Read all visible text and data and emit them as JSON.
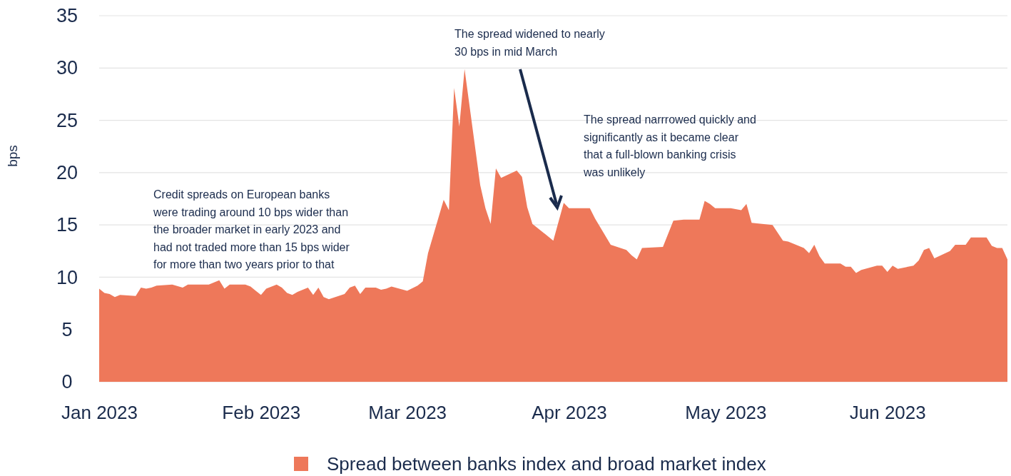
{
  "chart_data": {
    "type": "area",
    "ylabel": "bps",
    "ylim": [
      0,
      35
    ],
    "yticks": [
      0,
      5,
      10,
      15,
      20,
      25,
      30,
      35
    ],
    "xlim": [
      "2023-01-01",
      "2023-06-24"
    ],
    "xticks": [
      {
        "value": "2023-01-01",
        "label": "Jan 2023"
      },
      {
        "value": "2023-02-01",
        "label": "Feb 2023"
      },
      {
        "value": "2023-03-01",
        "label": "Mar 2023"
      },
      {
        "value": "2023-04-01",
        "label": "Apr 2023"
      },
      {
        "value": "2023-05-01",
        "label": "May 2023"
      },
      {
        "value": "2023-06-01",
        "label": "Jun 2023"
      }
    ],
    "grid": "y",
    "legend": "bottom",
    "annotations": [
      "Credit spreads on European banks were trading around 10 bps wider than the broader market in early 2023 and had not traded more than 15 bps wider for more than two years prior to that",
      "The spread widened to nearly 30 bps in mid March",
      "The spread narrrowed quickly and significantly as it became clear that a full-blown banking crisis was unlikely"
    ],
    "x": [
      "2023-01-01",
      "2023-01-02",
      "2023-01-03",
      "2023-01-04",
      "2023-01-05",
      "2023-01-08",
      "2023-01-09",
      "2023-01-10",
      "2023-01-11",
      "2023-01-12",
      "2023-01-15",
      "2023-01-17",
      "2023-01-18",
      "2023-01-22",
      "2023-01-23",
      "2023-01-24",
      "2023-01-25",
      "2023-01-26",
      "2023-01-29",
      "2023-01-30",
      "2023-01-31",
      "2023-02-01",
      "2023-02-02",
      "2023-02-04",
      "2023-02-05",
      "2023-02-06",
      "2023-02-07",
      "2023-02-08",
      "2023-02-10",
      "2023-02-11",
      "2023-02-12",
      "2023-02-13",
      "2023-02-14",
      "2023-02-17",
      "2023-02-18",
      "2023-02-19",
      "2023-02-20",
      "2023-02-21",
      "2023-02-23",
      "2023-02-24",
      "2023-02-25",
      "2023-02-26",
      "2023-03-01",
      "2023-03-03",
      "2023-03-04",
      "2023-03-05",
      "2023-03-08",
      "2023-03-09",
      "2023-03-10",
      "2023-03-11",
      "2023-03-12",
      "2023-03-15",
      "2023-03-16",
      "2023-03-17",
      "2023-03-18",
      "2023-03-19",
      "2023-03-22",
      "2023-03-23",
      "2023-03-24",
      "2023-03-25",
      "2023-03-29",
      "2023-03-31",
      "2023-04-01",
      "2023-04-05",
      "2023-04-06",
      "2023-04-09",
      "2023-04-12",
      "2023-04-13",
      "2023-04-14",
      "2023-04-15",
      "2023-04-19",
      "2023-04-21",
      "2023-04-23",
      "2023-04-26",
      "2023-04-27",
      "2023-04-28",
      "2023-04-29",
      "2023-05-02",
      "2023-05-04",
      "2023-05-05",
      "2023-05-06",
      "2023-05-10",
      "2023-05-12",
      "2023-05-13",
      "2023-05-16",
      "2023-05-17",
      "2023-05-18",
      "2023-05-19",
      "2023-05-20",
      "2023-05-23",
      "2023-05-24",
      "2023-05-25",
      "2023-05-26",
      "2023-05-27",
      "2023-05-30",
      "2023-05-31",
      "2023-06-01",
      "2023-06-02",
      "2023-06-03",
      "2023-06-06",
      "2023-06-07",
      "2023-06-08",
      "2023-06-09",
      "2023-06-10",
      "2023-06-13",
      "2023-06-14",
      "2023-06-16",
      "2023-06-17",
      "2023-06-20",
      "2023-06-21",
      "2023-06-22",
      "2023-06-23",
      "2023-06-24"
    ],
    "series": [
      {
        "name": "Spread between banks index and broad market index",
        "color": "#ee785a",
        "values": [
          8.9,
          8.5,
          8.4,
          8.1,
          8.3,
          8.2,
          9.0,
          8.9,
          9.0,
          9.2,
          9.3,
          9.0,
          9.3,
          9.3,
          9.5,
          9.7,
          8.9,
          9.3,
          9.3,
          9.1,
          8.7,
          8.3,
          8.9,
          9.3,
          9.0,
          8.5,
          8.3,
          8.6,
          9.0,
          8.3,
          9.0,
          8.1,
          7.9,
          8.4,
          9.0,
          9.2,
          8.4,
          9.0,
          9.0,
          8.8,
          8.9,
          9.1,
          8.7,
          9.2,
          9.6,
          12.3,
          17.4,
          16.4,
          28.1,
          24.4,
          29.9,
          18.8,
          16.6,
          15.1,
          20.4,
          19.5,
          20.2,
          19.6,
          16.7,
          15.1,
          13.5,
          17.1,
          16.6,
          16.6,
          15.6,
          13.1,
          12.6,
          12.1,
          11.7,
          12.8,
          12.9,
          15.4,
          15.5,
          15.5,
          17.3,
          17.0,
          16.6,
          16.6,
          16.4,
          17.0,
          15.2,
          15.0,
          13.5,
          13.4,
          12.8,
          12.3,
          13.1,
          12.0,
          11.3,
          11.3,
          11.0,
          11.0,
          10.4,
          10.7,
          11.1,
          11.1,
          10.5,
          11.1,
          10.8,
          11.1,
          11.6,
          12.6,
          12.8,
          11.8,
          12.5,
          13.1,
          13.1,
          13.8,
          13.8,
          13.0,
          12.8,
          12.8,
          11.7
        ]
      }
    ]
  }
}
